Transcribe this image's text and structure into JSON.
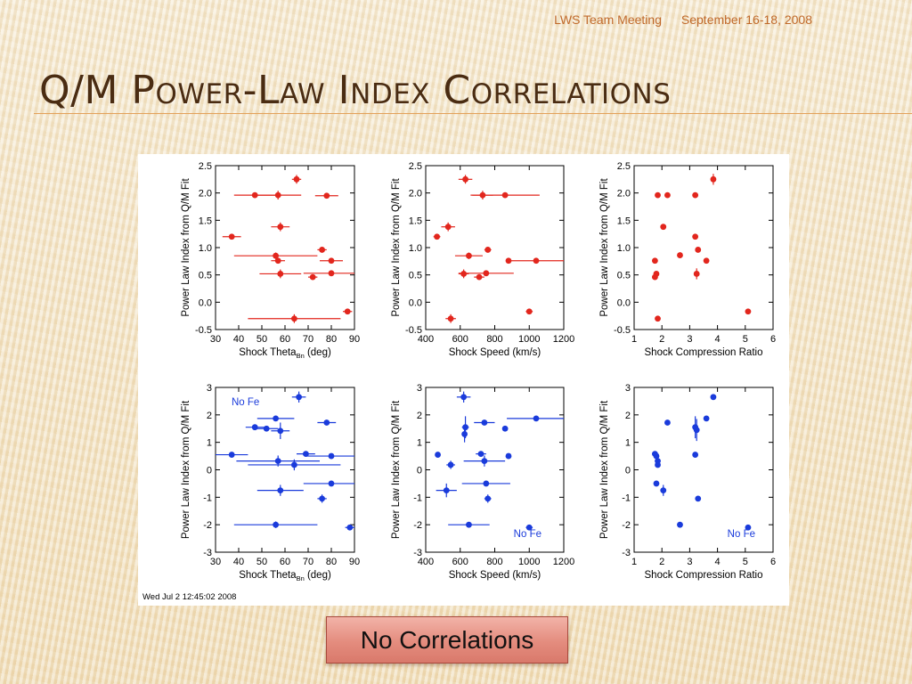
{
  "header": {
    "meeting": "LWS Team Meeting",
    "dates": "September 16-18, 2008"
  },
  "title": "Q/M Power-Law Index Correlations",
  "figure": {
    "timestamp": "Wed Jul  2 12:45:02 2008",
    "colors": {
      "red": "#e2261d",
      "blue": "#1a3bdb",
      "axis": "#000000"
    }
  },
  "conclusion_button": "No Correlations",
  "chart_data": [
    {
      "type": "scatter",
      "panel": "top-left",
      "color": "#e2261d",
      "xlabel": "Shock Theta",
      "xlabel_subscript": "Bn",
      "xlabel_unit": "(deg)",
      "ylabel": "Power Law Index from Q/M Fit",
      "xlim": [
        30,
        90
      ],
      "ylim": [
        -0.5,
        2.5
      ],
      "xticks": [
        "30",
        "40",
        "50",
        "60",
        "70",
        "80",
        "90"
      ],
      "yticks": [
        "-0.5",
        "0.0",
        "0.5",
        "1.0",
        "1.5",
        "2.0",
        "2.5"
      ],
      "note": "",
      "points": [
        {
          "x": 65,
          "y": 2.25,
          "xerr": 2,
          "yerr": 0.08
        },
        {
          "x": 47,
          "y": 1.96,
          "xerr": 9,
          "yerr": 0.05
        },
        {
          "x": 57,
          "y": 1.96,
          "xerr": 10,
          "yerr": 0.08
        },
        {
          "x": 78,
          "y": 1.95,
          "xerr": 5,
          "yerr": 0.03
        },
        {
          "x": 58,
          "y": 1.38,
          "xerr": 4,
          "yerr": 0.08
        },
        {
          "x": 37,
          "y": 1.2,
          "xerr": 4,
          "yerr": 0.04
        },
        {
          "x": 76,
          "y": 0.96,
          "xerr": 2,
          "yerr": 0.05
        },
        {
          "x": 56,
          "y": 0.85,
          "xerr": 18,
          "yerr": 0.06
        },
        {
          "x": 57,
          "y": 0.76,
          "xerr": 3,
          "yerr": 0.04
        },
        {
          "x": 80,
          "y": 0.76,
          "xerr": 5,
          "yerr": 0.05
        },
        {
          "x": 58,
          "y": 0.52,
          "xerr": 9,
          "yerr": 0.08
        },
        {
          "x": 80,
          "y": 0.53,
          "xerr": 12,
          "yerr": 0.05
        },
        {
          "x": 72,
          "y": 0.46,
          "xerr": 2,
          "yerr": 0.04
        },
        {
          "x": 64,
          "y": -0.3,
          "xerr": 20,
          "yerr": 0.08
        },
        {
          "x": 87,
          "y": -0.17,
          "xerr": 2,
          "yerr": 0.02
        }
      ]
    },
    {
      "type": "scatter",
      "panel": "top-middle",
      "color": "#e2261d",
      "xlabel": "Shock Speed (km/s)",
      "ylabel": "Power Law Index from Q/M Fit",
      "xlim": [
        400,
        1200
      ],
      "ylim": [
        -0.5,
        2.5
      ],
      "xticks": [
        "400",
        "600",
        "800",
        "1000",
        "1200"
      ],
      "yticks": [
        "-0.5",
        "0.0",
        "0.5",
        "1.0",
        "1.5",
        "2.0",
        "2.5"
      ],
      "note": "",
      "points": [
        {
          "x": 630,
          "y": 2.25,
          "xerr": 40,
          "yerr": 0.08
        },
        {
          "x": 730,
          "y": 1.96,
          "xerr": 60,
          "yerr": 0.08
        },
        {
          "x": 860,
          "y": 1.96,
          "xerr": 200,
          "yerr": 0.03
        },
        {
          "x": 530,
          "y": 1.38,
          "xerr": 40,
          "yerr": 0.08
        },
        {
          "x": 465,
          "y": 1.2,
          "xerr": 20,
          "yerr": 0.04
        },
        {
          "x": 760,
          "y": 0.96,
          "xerr": 20,
          "yerr": 0.05
        },
        {
          "x": 650,
          "y": 0.85,
          "xerr": 80,
          "yerr": 0.06
        },
        {
          "x": 880,
          "y": 0.76,
          "xerr": 10,
          "yerr": 0.03
        },
        {
          "x": 1040,
          "y": 0.76,
          "xerr": 170,
          "yerr": 0.03
        },
        {
          "x": 620,
          "y": 0.52,
          "xerr": 30,
          "yerr": 0.08
        },
        {
          "x": 750,
          "y": 0.53,
          "xerr": 160,
          "yerr": 0.05
        },
        {
          "x": 710,
          "y": 0.46,
          "xerr": 30,
          "yerr": 0.04
        },
        {
          "x": 545,
          "y": -0.3,
          "xerr": 30,
          "yerr": 0.08
        },
        {
          "x": 1000,
          "y": -0.17,
          "xerr": 20,
          "yerr": 0.02
        }
      ]
    },
    {
      "type": "scatter",
      "panel": "top-right",
      "color": "#e2261d",
      "xlabel": "Shock Compression Ratio",
      "ylabel": "Power Law Index from Q/M Fit",
      "xlim": [
        1,
        6
      ],
      "ylim": [
        -0.5,
        2.5
      ],
      "xticks": [
        "1",
        "2",
        "3",
        "4",
        "5",
        "6"
      ],
      "yticks": [
        "-0.5",
        "0.0",
        "0.5",
        "1.0",
        "1.5",
        "2.0",
        "2.5"
      ],
      "note": "",
      "points": [
        {
          "x": 3.85,
          "y": 2.25,
          "xerr": 0,
          "yerr": 0.1
        },
        {
          "x": 1.85,
          "y": 1.96,
          "xerr": 0,
          "yerr": 0.03
        },
        {
          "x": 2.2,
          "y": 1.96,
          "xerr": 0,
          "yerr": 0.03
        },
        {
          "x": 3.2,
          "y": 1.96,
          "xerr": 0,
          "yerr": 0.03
        },
        {
          "x": 2.05,
          "y": 1.38,
          "xerr": 0,
          "yerr": 0.03
        },
        {
          "x": 3.2,
          "y": 1.2,
          "xerr": 0,
          "yerr": 0.03
        },
        {
          "x": 3.3,
          "y": 0.96,
          "xerr": 0,
          "yerr": 0.03
        },
        {
          "x": 2.65,
          "y": 0.86,
          "xerr": 0,
          "yerr": 0.03
        },
        {
          "x": 1.75,
          "y": 0.76,
          "xerr": 0,
          "yerr": 0.03
        },
        {
          "x": 3.6,
          "y": 0.76,
          "xerr": 0,
          "yerr": 0.03
        },
        {
          "x": 1.8,
          "y": 0.52,
          "xerr": 0,
          "yerr": 0.03
        },
        {
          "x": 3.25,
          "y": 0.52,
          "xerr": 0,
          "yerr": 0.1
        },
        {
          "x": 1.75,
          "y": 0.46,
          "xerr": 0,
          "yerr": 0.03
        },
        {
          "x": 1.85,
          "y": -0.3,
          "xerr": 0,
          "yerr": 0.05
        },
        {
          "x": 5.1,
          "y": -0.17,
          "xerr": 0,
          "yerr": 0.02
        }
      ]
    },
    {
      "type": "scatter",
      "panel": "bottom-left",
      "color": "#1a3bdb",
      "xlabel": "Shock Theta",
      "xlabel_subscript": "Bn",
      "xlabel_unit": "(deg)",
      "ylabel": "Power Law Index from Q/M Fit",
      "xlim": [
        30,
        90
      ],
      "ylim": [
        -3,
        3
      ],
      "xticks": [
        "30",
        "40",
        "50",
        "60",
        "70",
        "80",
        "90"
      ],
      "yticks": [
        "-3",
        "-2",
        "-1",
        "0",
        "1",
        "2",
        "3"
      ],
      "note": "No Fe",
      "points": [
        {
          "x": 66,
          "y": 2.65,
          "xerr": 3,
          "yerr": 0.2
        },
        {
          "x": 56,
          "y": 1.87,
          "xerr": 8,
          "yerr": 0.1
        },
        {
          "x": 78,
          "y": 1.72,
          "xerr": 4,
          "yerr": 0.1
        },
        {
          "x": 47,
          "y": 1.55,
          "xerr": 4,
          "yerr": 0.06
        },
        {
          "x": 52,
          "y": 1.5,
          "xerr": 5,
          "yerr": 0.05
        },
        {
          "x": 58,
          "y": 1.42,
          "xerr": 4,
          "yerr": 0.3
        },
        {
          "x": 37,
          "y": 0.55,
          "xerr": 7,
          "yerr": 0.06
        },
        {
          "x": 69,
          "y": 0.58,
          "xerr": 4,
          "yerr": 0.06
        },
        {
          "x": 80,
          "y": 0.5,
          "xerr": 11,
          "yerr": 0.08
        },
        {
          "x": 57,
          "y": 0.32,
          "xerr": 18,
          "yerr": 0.2
        },
        {
          "x": 64,
          "y": 0.18,
          "xerr": 20,
          "yerr": 0.2
        },
        {
          "x": 80,
          "y": -0.5,
          "xerr": 12,
          "yerr": 0.06
        },
        {
          "x": 58,
          "y": -0.75,
          "xerr": 10,
          "yerr": 0.2
        },
        {
          "x": 76,
          "y": -1.05,
          "xerr": 2,
          "yerr": 0.15
        },
        {
          "x": 56,
          "y": -2.0,
          "xerr": 18,
          "yerr": 0.12
        },
        {
          "x": 88,
          "y": -2.1,
          "xerr": 2,
          "yerr": 0.04
        }
      ]
    },
    {
      "type": "scatter",
      "panel": "bottom-middle",
      "color": "#1a3bdb",
      "xlabel": "Shock Speed (km/s)",
      "ylabel": "Power Law Index from Q/M Fit",
      "xlim": [
        400,
        1200
      ],
      "ylim": [
        -3,
        3
      ],
      "xticks": [
        "400",
        "600",
        "800",
        "1000",
        "1200"
      ],
      "yticks": [
        "-3",
        "-2",
        "-1",
        "0",
        "1",
        "2",
        "3"
      ],
      "note": "No Fe",
      "points": [
        {
          "x": 620,
          "y": 2.65,
          "xerr": 40,
          "yerr": 0.2
        },
        {
          "x": 1040,
          "y": 1.87,
          "xerr": 170,
          "yerr": 0.05
        },
        {
          "x": 740,
          "y": 1.72,
          "xerr": 60,
          "yerr": 0.1
        },
        {
          "x": 630,
          "y": 1.55,
          "xerr": 20,
          "yerr": 0.4
        },
        {
          "x": 860,
          "y": 1.5,
          "xerr": 10,
          "yerr": 0.05
        },
        {
          "x": 625,
          "y": 1.3,
          "xerr": 10,
          "yerr": 0.3
        },
        {
          "x": 470,
          "y": 0.55,
          "xerr": 15,
          "yerr": 0.06
        },
        {
          "x": 720,
          "y": 0.58,
          "xerr": 30,
          "yerr": 0.1
        },
        {
          "x": 880,
          "y": 0.5,
          "xerr": 15,
          "yerr": 0.1
        },
        {
          "x": 740,
          "y": 0.32,
          "xerr": 120,
          "yerr": 0.2
        },
        {
          "x": 545,
          "y": 0.18,
          "xerr": 25,
          "yerr": 0.15
        },
        {
          "x": 750,
          "y": -0.5,
          "xerr": 140,
          "yerr": 0.05
        },
        {
          "x": 520,
          "y": -0.75,
          "xerr": 60,
          "yerr": 0.25
        },
        {
          "x": 760,
          "y": -1.05,
          "xerr": 20,
          "yerr": 0.15
        },
        {
          "x": 650,
          "y": -2.0,
          "xerr": 120,
          "yerr": 0.08
        },
        {
          "x": 1000,
          "y": -2.1,
          "xerr": 20,
          "yerr": 0.04
        }
      ]
    },
    {
      "type": "scatter",
      "panel": "bottom-right",
      "color": "#1a3bdb",
      "xlabel": "Shock Compression Ratio",
      "ylabel": "Power Law Index from Q/M Fit",
      "xlim": [
        1,
        6
      ],
      "ylim": [
        -3,
        3
      ],
      "xticks": [
        "1",
        "2",
        "3",
        "4",
        "5",
        "6"
      ],
      "yticks": [
        "-3",
        "-2",
        "-1",
        "0",
        "1",
        "2",
        "3"
      ],
      "note": "No Fe",
      "points": [
        {
          "x": 3.85,
          "y": 2.65,
          "xerr": 0,
          "yerr": 0.1
        },
        {
          "x": 3.6,
          "y": 1.87,
          "xerr": 0,
          "yerr": 0.05
        },
        {
          "x": 2.2,
          "y": 1.72,
          "xerr": 0,
          "yerr": 0.05
        },
        {
          "x": 3.2,
          "y": 1.55,
          "xerr": 0,
          "yerr": 0.4
        },
        {
          "x": 3.25,
          "y": 1.45,
          "xerr": 0,
          "yerr": 0.4
        },
        {
          "x": 1.75,
          "y": 0.58,
          "xerr": 0,
          "yerr": 0.05
        },
        {
          "x": 1.8,
          "y": 0.5,
          "xerr": 0,
          "yerr": 0.05
        },
        {
          "x": 3.2,
          "y": 0.55,
          "xerr": 0,
          "yerr": 0.05
        },
        {
          "x": 1.85,
          "y": 0.32,
          "xerr": 0,
          "yerr": 0.05
        },
        {
          "x": 1.85,
          "y": 0.18,
          "xerr": 0,
          "yerr": 0.05
        },
        {
          "x": 1.8,
          "y": -0.5,
          "xerr": 0,
          "yerr": 0.05
        },
        {
          "x": 2.05,
          "y": -0.75,
          "xerr": 0,
          "yerr": 0.2
        },
        {
          "x": 3.3,
          "y": -1.05,
          "xerr": 0,
          "yerr": 0.05
        },
        {
          "x": 2.65,
          "y": -2.0,
          "xerr": 0,
          "yerr": 0.04
        },
        {
          "x": 5.1,
          "y": -2.1,
          "xerr": 0,
          "yerr": 0.03
        }
      ]
    }
  ]
}
